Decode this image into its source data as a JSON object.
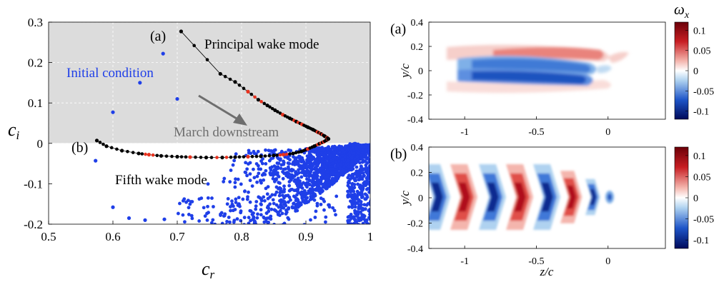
{
  "chart_data": [
    {
      "type": "scatter",
      "xlabel_main": "c",
      "xlabel_sub": "r",
      "ylabel_main": "c",
      "ylabel_sub": "i",
      "xlim": [
        0.5,
        1.0
      ],
      "ylim": [
        -0.2,
        0.3
      ],
      "xticks": [
        "0.5",
        "0.6",
        "0.7",
        "0.8",
        "0.9",
        "1"
      ],
      "yticks": [
        "-0.2",
        "-0.1",
        "0",
        "0.1",
        "0.2",
        "0.3"
      ],
      "grid": true,
      "unstable_region": {
        "ymin": 0.0,
        "ymax": 0.3,
        "color": "#dcdcdc"
      },
      "colors": {
        "trajectory": "#000000",
        "highlight": "#e8321e",
        "spectrum": "#1f3fe8",
        "arrow": "#6e6e6e"
      },
      "annotations": {
        "label_a": "(a)",
        "label_b": "(b)",
        "principal": "Principal wake mode",
        "fifth": "Fifth wake mode",
        "initial": "Initial condition",
        "march": "March downstream"
      },
      "series": [
        {
          "id": "principal",
          "points": [
            [
              0.706,
              0.277
            ],
            [
              0.767,
              0.172
            ],
            [
              0.79,
              0.152
            ],
            [
              0.81,
              0.128
            ],
            [
              0.826,
              0.108
            ],
            [
              0.84,
              0.094
            ],
            [
              0.852,
              0.082
            ],
            [
              0.864,
              0.071
            ],
            [
              0.875,
              0.062
            ],
            [
              0.885,
              0.054
            ],
            [
              0.894,
              0.047
            ],
            [
              0.903,
              0.04
            ],
            [
              0.911,
              0.034
            ],
            [
              0.918,
              0.028
            ],
            [
              0.924,
              0.023
            ],
            [
              0.929,
              0.018
            ],
            [
              0.933,
              0.014
            ],
            [
              0.935,
              0.011
            ]
          ],
          "highlight_indices": [
            3,
            7,
            10,
            13,
            16
          ]
        },
        {
          "id": "fifth",
          "points": [
            [
              0.575,
              0.007
            ],
            [
              0.59,
              -0.007
            ],
            [
              0.614,
              -0.018
            ],
            [
              0.64,
              -0.025
            ],
            [
              0.656,
              -0.028
            ],
            [
              0.675,
              -0.031
            ],
            [
              0.7,
              -0.033
            ],
            [
              0.72,
              -0.034
            ],
            [
              0.745,
              -0.035
            ],
            [
              0.77,
              -0.035
            ],
            [
              0.79,
              -0.034
            ],
            [
              0.81,
              -0.033
            ],
            [
              0.83,
              -0.032
            ],
            [
              0.85,
              -0.03
            ],
            [
              0.865,
              -0.028
            ],
            [
              0.88,
              -0.025
            ],
            [
              0.893,
              -0.02
            ],
            [
              0.903,
              -0.014
            ],
            [
              0.913,
              -0.007
            ],
            [
              0.921,
              -0.001
            ],
            [
              0.928,
              0.004
            ],
            [
              0.932,
              0.008
            ],
            [
              0.934,
              0.01
            ],
            [
              0.935,
              0.011
            ]
          ],
          "highlight_indices": [
            4,
            7,
            11,
            14,
            17,
            20,
            22
          ]
        },
        {
          "id": "initial",
          "points": [
            [
              0.573,
              -0.043
            ],
            [
              0.6,
              0.077
            ],
            [
              0.642,
              0.15
            ],
            [
              0.678,
              0.222
            ],
            [
              0.7,
              0.11
            ],
            [
              0.6,
              -0.158
            ],
            [
              0.625,
              -0.185
            ],
            [
              0.65,
              -0.19
            ],
            [
              0.68,
              -0.188
            ]
          ]
        }
      ]
    },
    {
      "type": "heatmap",
      "panel_label": "(a)",
      "ylabel": "y/c",
      "ylim": [
        -0.4,
        0.4
      ],
      "xlim": [
        -1.25,
        0.4
      ],
      "yticks": [
        "0.4",
        "0.2",
        "0",
        "-0.2",
        "-0.4"
      ],
      "xticks": [
        "-1",
        "-0.5",
        "0"
      ],
      "colorbar_title_main": "ω",
      "colorbar_title_sub": "x",
      "colorbar_ticks": [
        "0.1",
        "0.05",
        "0",
        "-0.05",
        "-0.1"
      ]
    },
    {
      "type": "heatmap",
      "panel_label": "(b)",
      "ylabel": "y/c",
      "xlabel": "z/c",
      "ylim": [
        -0.4,
        0.4
      ],
      "xlim": [
        -1.25,
        0.4
      ],
      "yticks": [
        "0.4",
        "0.2",
        "0",
        "-0.2",
        "-0.4"
      ],
      "xticks": [
        "-1",
        "-0.5",
        "0"
      ],
      "colorbar_ticks": [
        "0.1",
        "0.05",
        "0",
        "-0.05",
        "-0.1"
      ]
    }
  ]
}
